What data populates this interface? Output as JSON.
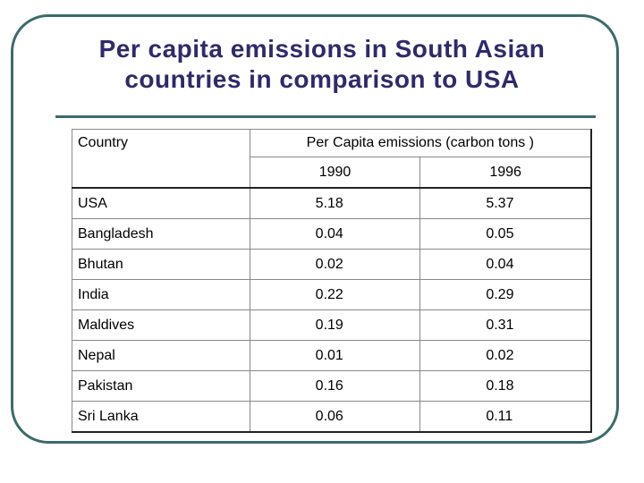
{
  "title_line1": "Per capita emissions in South Asian",
  "title_line2": "countries in comparison to USA",
  "table": {
    "country_header": "Country",
    "group_header": "Per Capita emissions (carbon tons )",
    "years": [
      "1990",
      "1996"
    ],
    "rows": [
      {
        "country": "USA",
        "v1990": "5.18",
        "v1996": "5.37"
      },
      {
        "country": "Bangladesh",
        "v1990": "0.04",
        "v1996": "0.05"
      },
      {
        "country": "Bhutan",
        "v1990": "0.02",
        "v1996": "0.04"
      },
      {
        "country": "India",
        "v1990": "0.22",
        "v1996": "0.29"
      },
      {
        "country": "Maldives",
        "v1990": "0.19",
        "v1996": "0.31"
      },
      {
        "country": "Nepal",
        "v1990": "0.01",
        "v1996": "0.02"
      },
      {
        "country": "Pakistan",
        "v1990": "0.16",
        "v1996": "0.18"
      },
      {
        "country": "Sri Lanka",
        "v1990": "0.06",
        "v1996": "0.11"
      }
    ]
  },
  "colors": {
    "title": "#2e2a6b",
    "frame": "#3d6a6a"
  }
}
